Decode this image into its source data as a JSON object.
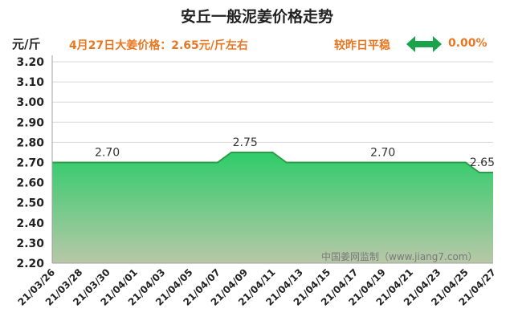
{
  "header": {
    "title": "安丘一般泥姜价格走势",
    "unit": "元/斤",
    "price_note": "4月27日大姜价格：2.65元/斤左右",
    "change_label": "较昨日平稳",
    "change_value": "0.00%",
    "change_icon": "double-arrow-icon"
  },
  "watermark": "中国姜网监制（www.jiang7.com）",
  "colors": {
    "line": "#2a9d45",
    "fill_top": "#2ecc6a",
    "fill_bottom": "#b8c8a8",
    "accent": "#e87722",
    "icon": "#1aa34a"
  },
  "chart_data": {
    "type": "area",
    "title": "安丘一般泥姜价格走势",
    "ylabel": "元/斤",
    "ylim": [
      2.2,
      3.2
    ],
    "yticks": [
      "2.20",
      "2.30",
      "2.40",
      "2.50",
      "2.60",
      "2.70",
      "2.80",
      "2.90",
      "3.00",
      "3.10",
      "3.20"
    ],
    "grid": true,
    "x_labels": [
      "21/03/26",
      "21/03/28",
      "21/03/30",
      "21/04/01",
      "21/04/03",
      "21/04/05",
      "21/04/07",
      "21/04/09",
      "21/04/11",
      "21/04/13",
      "21/04/15",
      "21/04/17",
      "21/04/19",
      "21/04/21",
      "21/04/23",
      "21/04/25",
      "21/04/27"
    ],
    "x": [
      "21/03/26",
      "21/03/27",
      "21/03/28",
      "21/03/29",
      "21/03/30",
      "21/03/31",
      "21/04/01",
      "21/04/02",
      "21/04/03",
      "21/04/04",
      "21/04/05",
      "21/04/06",
      "21/04/07",
      "21/04/08",
      "21/04/09",
      "21/04/10",
      "21/04/11",
      "21/04/12",
      "21/04/13",
      "21/04/14",
      "21/04/15",
      "21/04/16",
      "21/04/17",
      "21/04/18",
      "21/04/19",
      "21/04/20",
      "21/04/21",
      "21/04/22",
      "21/04/23",
      "21/04/24",
      "21/04/25",
      "21/04/26",
      "21/04/27"
    ],
    "values": [
      2.7,
      2.7,
      2.7,
      2.7,
      2.7,
      2.7,
      2.7,
      2.7,
      2.7,
      2.7,
      2.7,
      2.7,
      2.7,
      2.75,
      2.75,
      2.75,
      2.75,
      2.7,
      2.7,
      2.7,
      2.7,
      2.7,
      2.7,
      2.7,
      2.7,
      2.7,
      2.7,
      2.7,
      2.7,
      2.7,
      2.7,
      2.65,
      2.65
    ],
    "annotations": [
      {
        "x": "21/03/30",
        "text": "2.70"
      },
      {
        "x": "21/04/09",
        "text": "2.75"
      },
      {
        "x": "21/04/19",
        "text": "2.70"
      },
      {
        "x": "21/04/27",
        "text": "2.65"
      }
    ]
  }
}
